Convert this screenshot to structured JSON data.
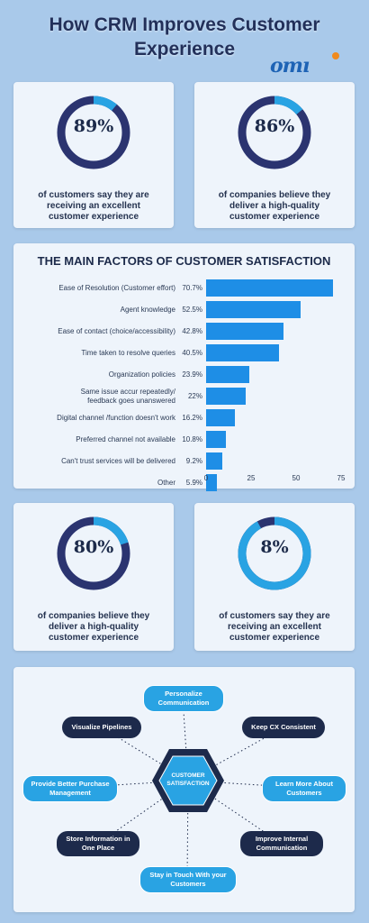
{
  "title_line1": "How CRM Improves Customer",
  "title_line2": "Experience",
  "logo": {
    "text": "om",
    "accent_color": "#f08a1e",
    "color": "#1e63b5"
  },
  "stats_top": [
    {
      "value": "89%",
      "percent": 89,
      "text_lines": [
        "of customers say they are",
        "receiving an excellent",
        "customer experience"
      ]
    },
    {
      "value": "86%",
      "percent": 86,
      "text_lines": [
        "of companies believe they",
        "deliver a high-quality",
        "customer experience"
      ]
    }
  ],
  "stats_bottom": [
    {
      "value": "80%",
      "percent": 80,
      "text_lines": [
        "of companies believe they",
        "deliver a high-quality",
        "customer experience"
      ]
    },
    {
      "value": "8%",
      "percent": 8,
      "text_lines": [
        "of customers say they are",
        "receiving an excellent",
        "customer experience"
      ]
    }
  ],
  "colors": {
    "ring_track": "#2b3470",
    "ring_fill": "#29a3e3",
    "bar": "#1e8ee6",
    "dark": "#1d2a4b"
  },
  "chart_data": {
    "type": "bar",
    "orientation": "horizontal",
    "title": "THE MAIN FACTORS OF CUSTOMER SATISFACTION",
    "categories": [
      "Ease of Resolution (Customer effort)",
      "Agent knowledge",
      "Ease of contact (choice/accessibility)",
      "Time taken to resolve queries",
      "Organization policies",
      "Same issue accur repeatedly/ feedback goes unanswered",
      "Digital channel /function doesn't work",
      "Preferred channel not available",
      "Can't trust services will be delivered",
      "Other"
    ],
    "category_lines": [
      [
        "Ease of Resolution (Customer effort)"
      ],
      [
        "Agent knowledge"
      ],
      [
        "Ease of contact (choice/accessibility)"
      ],
      [
        "Time taken to resolve queries"
      ],
      [
        "Organization policies"
      ],
      [
        "Same issue accur repeatedly/",
        "feedback goes unanswered"
      ],
      [
        "Digital channel /function doesn't work"
      ],
      [
        "Preferred channel not available"
      ],
      [
        "Can't trust services will be delivered"
      ],
      [
        "Other"
      ]
    ],
    "values": [
      70.7,
      52.5,
      42.8,
      40.5,
      23.9,
      22,
      16.2,
      10.8,
      9.2,
      5.9
    ],
    "value_labels": [
      "70.7%",
      "52.5%",
      "42.8%",
      "40.5%",
      "23.9%",
      "22%",
      "16.2%",
      "10.8%",
      "9.2%",
      "5.9%"
    ],
    "xticks": [
      "0",
      "25",
      "50",
      "75"
    ],
    "xlim": [
      0,
      75
    ],
    "grid": false,
    "legend": "none"
  },
  "diagram": {
    "center": [
      "CUSTOMER",
      "SATISFACTION"
    ],
    "nodes": [
      {
        "lines": [
          "Personalize",
          "Communication"
        ],
        "style": "blue"
      },
      {
        "lines": [
          "Keep CX Consistent"
        ],
        "style": "dark"
      },
      {
        "lines": [
          "Learn More About",
          "Customers"
        ],
        "style": "blue"
      },
      {
        "lines": [
          "Improve Internal",
          "Communication"
        ],
        "style": "dark"
      },
      {
        "lines": [
          "Stay in Touch With your",
          "Customers"
        ],
        "style": "blue"
      },
      {
        "lines": [
          "Store Information in",
          "One Place"
        ],
        "style": "dark"
      },
      {
        "lines": [
          "Provide Better Purchase",
          "Management"
        ],
        "style": "blue"
      },
      {
        "lines": [
          "Visualize Pipelines"
        ],
        "style": "dark"
      }
    ]
  }
}
